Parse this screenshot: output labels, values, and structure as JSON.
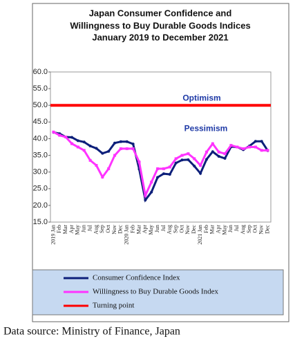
{
  "chart_data": {
    "type": "line",
    "title": [
      "Japan Consumer Confidence and",
      "Willingness to Buy Durable Goods Indices",
      "January 2019 to December 2021"
    ],
    "categories": [
      "2019 Jan",
      "Feb",
      "Mar",
      "Apr",
      "May",
      "Jun",
      "Jul",
      "Aug",
      "Sep",
      "Oct",
      "Nov",
      "Dec",
      "2020 Jan",
      "Feb",
      "Mar",
      "Apr",
      "May",
      "Jun",
      "Jul",
      "Aug",
      "Sep",
      "Oct",
      "Nov",
      "Dec",
      "2021 Jan",
      "Feb",
      "Mar",
      "Apr",
      "May",
      "Jun",
      "Jul",
      "Aug",
      "Sep",
      "Oct",
      "Nov",
      "Dec"
    ],
    "series": [
      {
        "name": "Consumer Confidence Index",
        "color": "#0d1f7a",
        "values": [
          41.9,
          41.5,
          40.5,
          40.4,
          39.4,
          39.0,
          37.8,
          37.1,
          35.6,
          36.2,
          38.7,
          39.1,
          39.1,
          38.4,
          30.9,
          21.6,
          24.0,
          28.4,
          29.5,
          29.3,
          32.7,
          33.6,
          33.7,
          31.8,
          29.6,
          33.8,
          36.1,
          34.7,
          34.1,
          37.6,
          37.5,
          36.7,
          37.8,
          39.2,
          39.2,
          36.4
        ]
      },
      {
        "name": "Willingness to Buy Durable Goods Index",
        "color": "#ff33ff",
        "values": [
          42.0,
          41.0,
          40.5,
          38.5,
          37.5,
          36.5,
          33.5,
          32.0,
          28.5,
          31.0,
          35.0,
          37.0,
          37.0,
          37.0,
          33.0,
          23.0,
          27.0,
          31.0,
          31.0,
          31.5,
          34.0,
          35.0,
          35.5,
          34.0,
          32.0,
          36.0,
          38.5,
          36.0,
          35.5,
          38.0,
          37.5,
          37.0,
          37.5,
          37.5,
          36.5,
          36.5
        ]
      }
    ],
    "reference_line": {
      "name": "Turning point",
      "value": 50,
      "color": "#ff0000"
    },
    "annotations": [
      "Optimism",
      "Pessimism"
    ],
    "ylim": [
      15,
      60
    ],
    "yticks": [
      {
        "value": 15,
        "label": "15.0"
      },
      {
        "value": 20,
        "label": "20.0"
      },
      {
        "value": 25,
        "label": "25.0"
      },
      {
        "value": 30,
        "label": "30.0"
      },
      {
        "value": 35,
        "label": "35.0"
      },
      {
        "value": 40,
        "label": "40.0"
      },
      {
        "value": 45,
        "label": "45.0"
      },
      {
        "value": 50,
        "label": "50.0"
      },
      {
        "value": 55,
        "label": "55.0"
      },
      {
        "value": 60,
        "label": "60.0"
      }
    ],
    "source": "Data source: Ministry of Finance, Japan"
  }
}
